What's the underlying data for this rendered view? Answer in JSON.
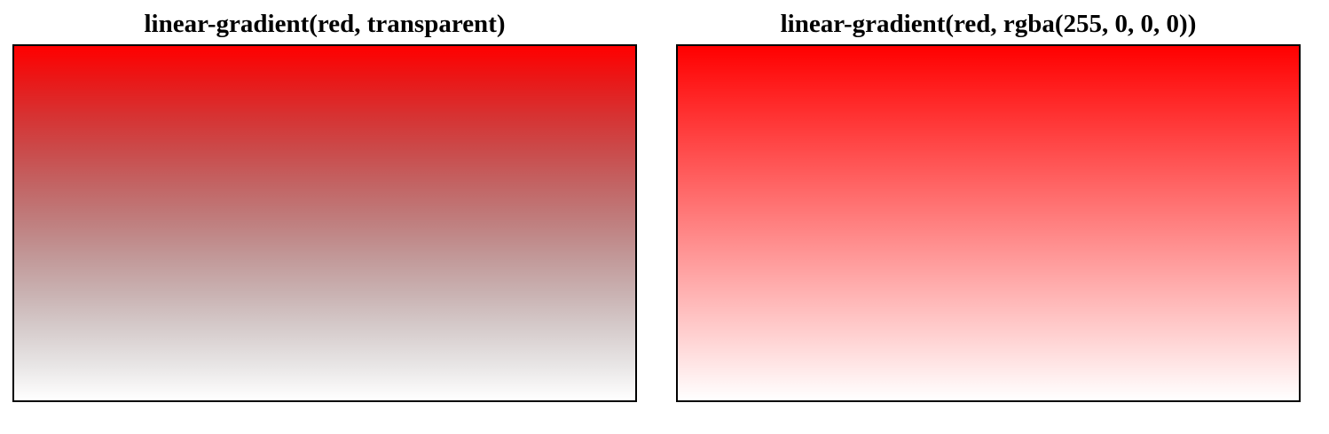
{
  "panels": [
    {
      "title": "linear-gradient(red, transparent)",
      "gradient_start": "#ff0000",
      "gradient_end": "transparent"
    },
    {
      "title": "linear-gradient(red, rgba(255, 0, 0, 0))",
      "gradient_start": "#ff0000",
      "gradient_end": "rgba(255, 0, 0, 0)"
    }
  ]
}
